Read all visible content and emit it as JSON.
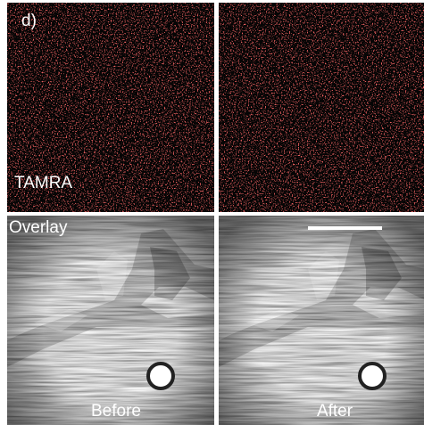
{
  "panel_label": "d)",
  "rows": [
    {
      "label": "TAMRA"
    },
    {
      "label": "Overlay"
    }
  ],
  "columns": [
    "Before",
    "After"
  ]
}
